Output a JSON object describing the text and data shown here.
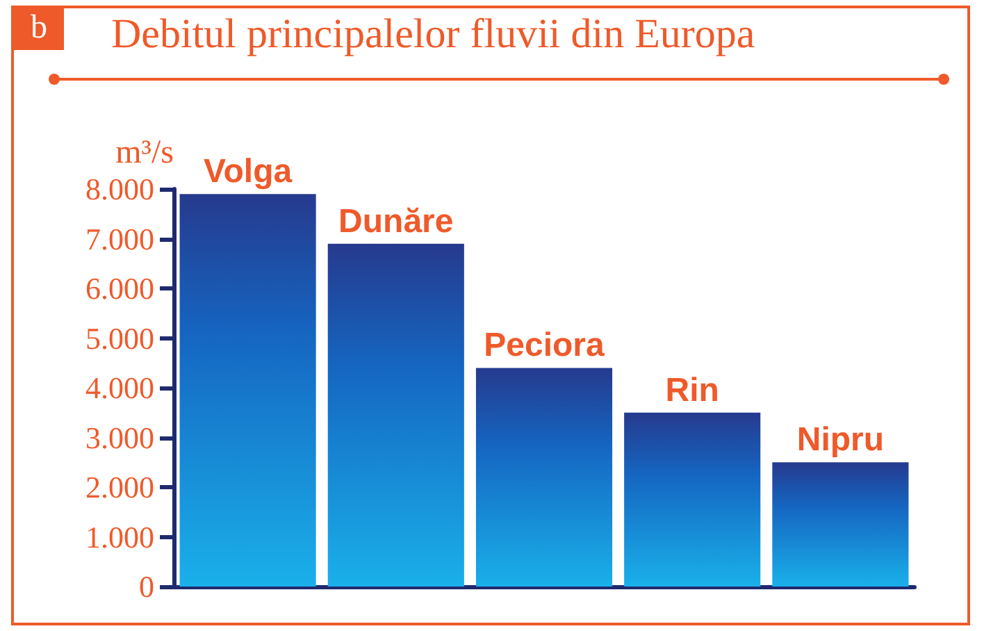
{
  "chart_data": {
    "type": "bar",
    "title": "Debitul principalelor fluvii din Europa",
    "ylabel": "m³/s",
    "annotations": [
      "b"
    ],
    "categories": [
      "Volga",
      "Dunăre",
      "Peciora",
      "Rin",
      "Nipru"
    ],
    "values": [
      7900,
      6900,
      4400,
      3500,
      2500
    ],
    "color": "#1565c0",
    "ylim": [
      0,
      8000
    ],
    "yticks": [
      {
        "value": 0,
        "label": "0"
      },
      {
        "value": 1000,
        "label": "1.000"
      },
      {
        "value": 2000,
        "label": "2.000"
      },
      {
        "value": 3000,
        "label": "3.000"
      },
      {
        "value": 4000,
        "label": "4.000"
      },
      {
        "value": 5000,
        "label": "5.000"
      },
      {
        "value": 6000,
        "label": "6.000"
      },
      {
        "value": 7000,
        "label": "7.000"
      },
      {
        "value": 8000,
        "label": "8.000"
      }
    ],
    "grid": false,
    "tick_labels": "y"
  }
}
